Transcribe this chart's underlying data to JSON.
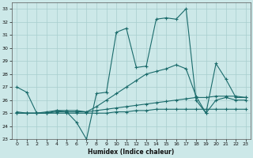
{
  "xlabel": "Humidex (Indice chaleur)",
  "xlim": [
    -0.5,
    23.5
  ],
  "ylim": [
    23,
    33.5
  ],
  "yticks": [
    23,
    24,
    25,
    26,
    27,
    28,
    29,
    30,
    31,
    32,
    33
  ],
  "xticks": [
    0,
    1,
    2,
    3,
    4,
    5,
    6,
    7,
    8,
    9,
    10,
    11,
    12,
    13,
    14,
    15,
    16,
    17,
    18,
    19,
    20,
    21,
    22,
    23
  ],
  "bg_color": "#cce8e8",
  "grid_color": "#a8cece",
  "line_color": "#1a6b6b",
  "line1_y": [
    27.0,
    26.6,
    25.0,
    25.0,
    25.2,
    25.1,
    24.3,
    23.0,
    26.5,
    26.6,
    31.2,
    31.5,
    28.5,
    28.6,
    32.2,
    32.3,
    32.2,
    33.0,
    26.0,
    25.0,
    28.8,
    27.6,
    26.2,
    26.2
  ],
  "line2_y": [
    25.0,
    25.0,
    25.0,
    25.1,
    25.2,
    25.2,
    25.2,
    25.1,
    25.5,
    26.0,
    26.5,
    27.0,
    27.5,
    28.0,
    28.2,
    28.4,
    28.7,
    28.4,
    26.3,
    25.0,
    26.0,
    26.2,
    26.0,
    26.0
  ],
  "line3_y": [
    25.0,
    25.0,
    25.0,
    25.0,
    25.1,
    25.1,
    25.1,
    25.1,
    25.2,
    25.3,
    25.4,
    25.5,
    25.6,
    25.7,
    25.8,
    25.9,
    26.0,
    26.1,
    26.2,
    26.2,
    26.3,
    26.3,
    26.3,
    26.2
  ],
  "line4_y": [
    25.1,
    25.0,
    25.0,
    25.0,
    25.0,
    25.0,
    25.0,
    25.0,
    25.0,
    25.0,
    25.1,
    25.1,
    25.2,
    25.2,
    25.3,
    25.3,
    25.3,
    25.3,
    25.3,
    25.3,
    25.3,
    25.3,
    25.3,
    25.3
  ]
}
